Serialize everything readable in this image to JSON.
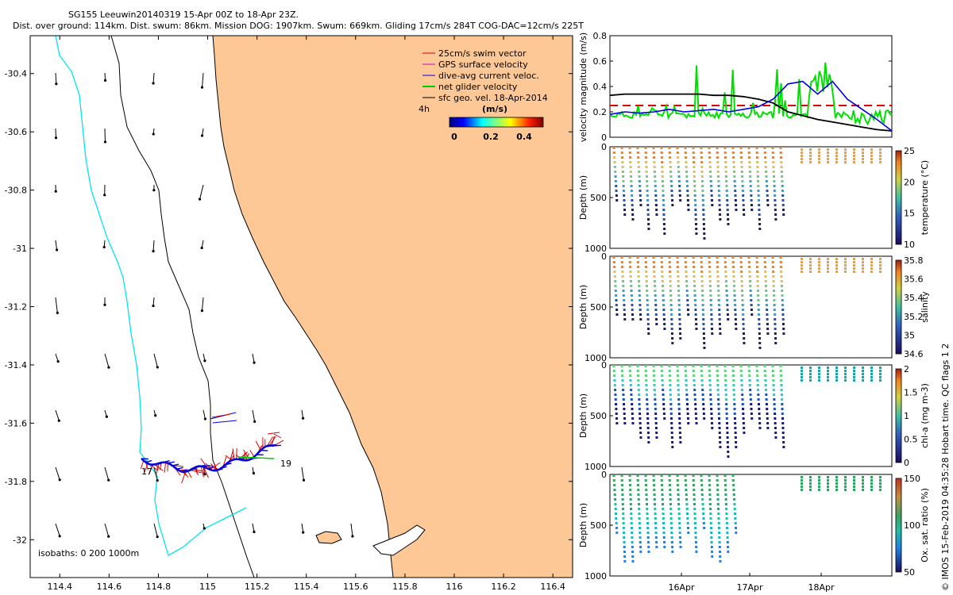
{
  "title": {
    "line1": "SG155 Leeuwin20140319 15-Apr 00Z to 18-Apr 23Z.",
    "line2": "Dist. over ground: 114km. Dist. swum: 86km. Mission DOG: 1907km. Swum: 669km. Gliding 17cm/s 284T COG-DAC=12cm/s 225T"
  },
  "map": {
    "xticks": [
      "114.4",
      "114.6",
      "114.8",
      "115",
      "115.2",
      "115.4",
      "115.6",
      "115.8",
      "116",
      "116.2",
      "116.4"
    ],
    "yticks": [
      "-30.4",
      "-30.6",
      "-30.8",
      "-31",
      "-31.2",
      "-31.4",
      "-31.6",
      "-31.8",
      "-32"
    ],
    "xlim": [
      114.28,
      116.48
    ],
    "ylim": [
      -32.13,
      -30.27
    ],
    "isobath_label": "isobaths: 0   200   1000m",
    "legend": [
      {
        "label": "25cm/s swim vector",
        "color": "#dd0000"
      },
      {
        "label": "GPS surface velocity",
        "color": "#cc00cc"
      },
      {
        "label": "dive-avg current veloc.",
        "color": "#0000dd"
      },
      {
        "label": "net glider velocity",
        "color": "#00cc00"
      },
      {
        "label": "sfc geo. vel. 18-Apr-2014",
        "color": "#000000"
      }
    ],
    "time_marker": "4h",
    "colorbar_title": "(m/s)",
    "colorbar_ticks": [
      "0",
      "0.2",
      "0.4"
    ],
    "track_labels": [
      "17",
      "19"
    ],
    "land_color": "#fdc896",
    "isobath_200_color": "#000000",
    "isobath_1000_color": "#00e5ee"
  },
  "velocity_panel": {
    "ylabel": "velocity magnitude (m/s)",
    "yticks": [
      "0",
      "0.2",
      "0.4",
      "0.6",
      "0.8"
    ],
    "ylim": [
      0,
      0.8
    ],
    "threshold": 0.25
  },
  "profile_panels": [
    {
      "ylabel": "Depth (m)",
      "cbar_label": "temperature (°C)",
      "cbar_ticks": [
        "10",
        "15",
        "20",
        "25"
      ]
    },
    {
      "ylabel": "Depth (m)",
      "cbar_label": "salinity",
      "cbar_ticks": [
        "34.6",
        "35",
        "35.2",
        "35.4",
        "35.6",
        "35.8"
      ]
    },
    {
      "ylabel": "Depth (m)",
      "cbar_label": "chl-a (mg m-3)",
      "cbar_ticks": [
        "0",
        "0.5",
        "1",
        "1.5",
        "2"
      ]
    },
    {
      "ylabel": "Depth (m)",
      "cbar_label": "Ox. sat. ratio (%)",
      "cbar_ticks": [
        "50",
        "100",
        "150"
      ]
    }
  ],
  "depth_ticks": [
    "0",
    "500",
    "1000"
  ],
  "time_ticks": [
    "16Apr",
    "17Apr",
    "18Apr"
  ],
  "copyright": "© IMOS 15-Feb-2019 04:35:28 Hobart time. QC flags 1 2",
  "chart_data": {
    "type": "scatter",
    "map_vectors": "sfc geo. vel. 18-Apr-2014",
    "velocity_series": [
      {
        "name": "sfc geo. vel. 18-Apr-2014",
        "color": "#000000",
        "values": [
          0.33,
          0.34,
          0.34,
          0.34,
          0.34,
          0.34,
          0.34,
          0.33,
          0.33,
          0.32,
          0.3,
          0.27,
          0.2,
          0.17,
          0.14,
          0.12,
          0.1,
          0.08,
          0.06,
          0.05
        ]
      },
      {
        "name": "dive-avg current veloc.",
        "color": "#0000dd",
        "values": [
          0.18,
          0.2,
          0.19,
          0.2,
          0.22,
          0.2,
          0.21,
          0.22,
          0.2,
          0.22,
          0.24,
          0.3,
          0.42,
          0.44,
          0.34,
          0.44,
          0.3,
          0.22,
          0.14,
          0.05
        ]
      }
    ]
  }
}
